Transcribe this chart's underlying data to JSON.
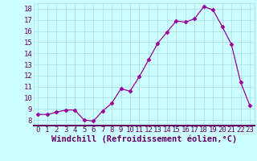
{
  "x": [
    0,
    1,
    2,
    3,
    4,
    5,
    6,
    7,
    8,
    9,
    10,
    11,
    12,
    13,
    14,
    15,
    16,
    17,
    18,
    19,
    20,
    21,
    22,
    23
  ],
  "y": [
    8.5,
    8.5,
    8.7,
    8.9,
    8.9,
    8.0,
    7.9,
    8.8,
    9.5,
    10.8,
    10.6,
    11.9,
    13.4,
    14.9,
    15.9,
    16.9,
    16.8,
    17.1,
    18.2,
    17.9,
    16.4,
    14.8,
    11.4,
    9.3
  ],
  "line_color": "#990099",
  "marker": "D",
  "marker_size": 2.5,
  "background_color": "#ccffff",
  "grid_color": "#aadddd",
  "xlabel": "Windchill (Refroidissement éolien,°C)",
  "xlabel_fontsize": 7.5,
  "ylim": [
    7.5,
    18.5
  ],
  "xlim": [
    -0.5,
    23.5
  ],
  "yticks": [
    8,
    9,
    10,
    11,
    12,
    13,
    14,
    15,
    16,
    17,
    18
  ],
  "xticks": [
    0,
    1,
    2,
    3,
    4,
    5,
    6,
    7,
    8,
    9,
    10,
    11,
    12,
    13,
    14,
    15,
    16,
    17,
    18,
    19,
    20,
    21,
    22,
    23
  ],
  "tick_fontsize": 6.5,
  "label_color": "#660066"
}
